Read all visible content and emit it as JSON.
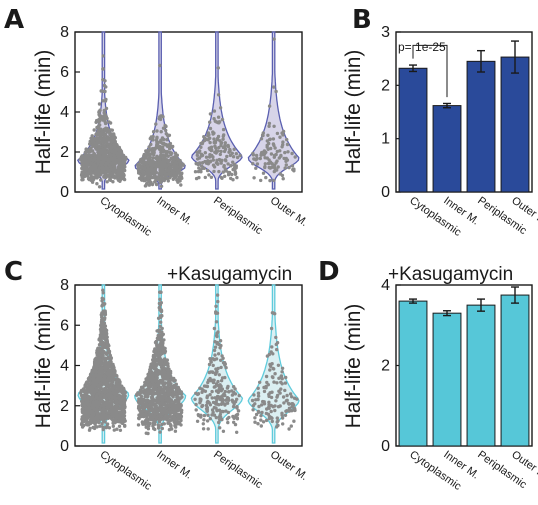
{
  "panels": {
    "A": {
      "letter": "A"
    },
    "B": {
      "letter": "B",
      "annotation": "p= 1e-25"
    },
    "C": {
      "letter": "C",
      "condition": "+Kasugamycin"
    },
    "D": {
      "letter": "D",
      "condition": "+Kasugamycin"
    }
  },
  "colors": {
    "violin_fill_A": "#c9c6e0",
    "violin_edge_A": "#5a5fb0",
    "bar_B": "#2a4a9a",
    "violin_fill_C": "#cfe9ee",
    "violin_edge_C": "#5fcbdc",
    "bar_D": "#56c7d8",
    "points": "#8a8a8a"
  },
  "chart_data": [
    {
      "panel": "A",
      "type": "violin",
      "ylabel": "Half-life (min)",
      "ylim": [
        0,
        8
      ],
      "yticks": [
        0,
        2,
        4,
        6,
        8
      ],
      "categories": [
        "Cytoplasmic",
        "Inner M.",
        "Periplasmic",
        "Outer M."
      ],
      "approx_median": [
        1.6,
        1.3,
        1.8,
        1.7
      ]
    },
    {
      "panel": "B",
      "type": "bar",
      "ylabel": "Half-life (min)",
      "ylim": [
        0,
        3
      ],
      "yticks": [
        0,
        1,
        2,
        3
      ],
      "categories": [
        "Cytoplasmic",
        "Inner M.",
        "Periplasmic",
        "Outer M."
      ],
      "values": [
        2.32,
        1.62,
        2.45,
        2.53
      ],
      "errors": [
        0.06,
        0.04,
        0.2,
        0.3
      ],
      "annotation": "p= 1e-25"
    },
    {
      "panel": "C",
      "type": "violin",
      "ylabel": "Half-life (min)",
      "ylim": [
        0,
        8
      ],
      "yticks": [
        0,
        2,
        4,
        6,
        8
      ],
      "categories": [
        "Cytoplasmic",
        "Inner M.",
        "Periplasmic",
        "Outer M."
      ],
      "approx_median": [
        2.6,
        2.5,
        2.4,
        2.3
      ]
    },
    {
      "panel": "D",
      "type": "bar",
      "ylabel": "Half-life (min)",
      "ylim": [
        0,
        4
      ],
      "yticks": [
        0,
        2,
        4
      ],
      "categories": [
        "Cytoplasmic",
        "Inner M.",
        "Periplasmic",
        "Outer M."
      ],
      "values": [
        3.6,
        3.3,
        3.5,
        3.75
      ],
      "errors": [
        0.05,
        0.06,
        0.15,
        0.2
      ]
    }
  ]
}
